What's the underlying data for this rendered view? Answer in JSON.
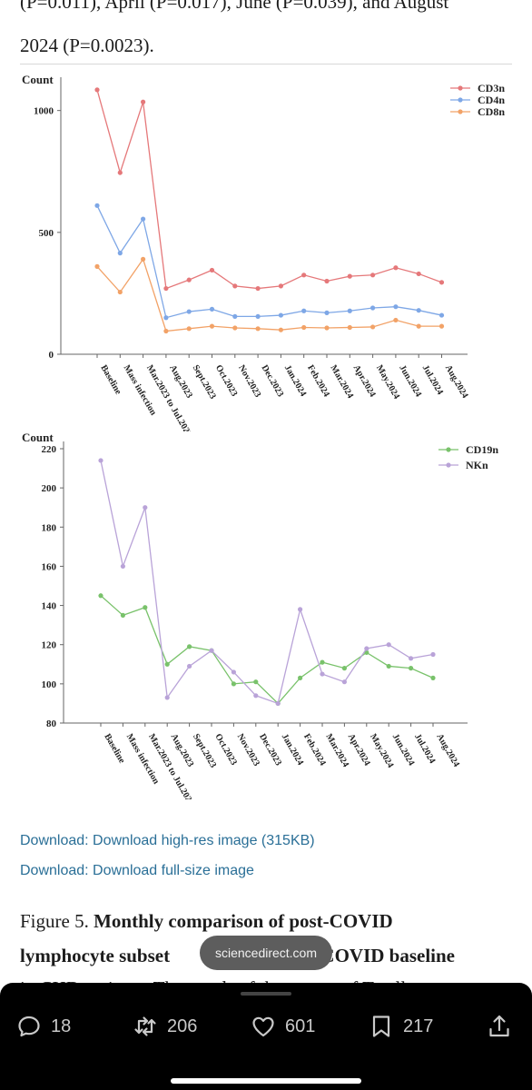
{
  "article": {
    "intro_line1": "(P=0.011), April (P=0.017), June (P=0.039), and August",
    "intro_line2": "2024 (P=0.0023).",
    "download_highres": "Download: Download high-res image (315KB)",
    "download_fullsize": "Download: Download full-size image",
    "caption_prefix": "Figure 5.",
    "caption_bold_line1": "Monthly comparison of post-COVID",
    "caption_line2_a": "lymphocyte subset",
    "caption_line2_b": "e-COVID baseline",
    "caption_line3": "in CHD patients. The trends of the counts of T cell"
  },
  "toast": {
    "text": "sciencedirect.com"
  },
  "actions": {
    "replies": "18",
    "reposts": "206",
    "likes": "601",
    "bookmarks": "217"
  },
  "colors": {
    "cd3n": "#e5787a",
    "cd4n": "#7ea7e6",
    "cd8n": "#f2a267",
    "cd19n": "#79c26b",
    "nkn": "#b9a3d8",
    "link": "#2a6f97"
  },
  "chart_data": [
    {
      "type": "line",
      "ylabel": "Count",
      "ylim": [
        0,
        1200
      ],
      "yticks": [
        0,
        500,
        1000
      ],
      "legend": "top-right",
      "categories": [
        "Baseline",
        "Mass infection",
        "Mar.2023 to Jul.2023",
        "Aug.2023",
        "Sept.2023",
        "Oct.2023",
        "Nov.2023",
        "Dec.2023",
        "Jan.2024",
        "Feb.2024",
        "Mar.2024",
        "Apr.2024",
        "May.2024",
        "Jun.2024",
        "Jul.2024",
        "Aug.2024"
      ],
      "series": [
        {
          "name": "CD3n",
          "color": "#e5787a",
          "values": [
            1085,
            745,
            1035,
            270,
            305,
            345,
            280,
            270,
            280,
            325,
            300,
            320,
            325,
            355,
            330,
            295
          ]
        },
        {
          "name": "CD4n",
          "color": "#7ea7e6",
          "values": [
            610,
            415,
            555,
            150,
            175,
            185,
            155,
            155,
            160,
            178,
            170,
            178,
            190,
            195,
            180,
            160
          ]
        },
        {
          "name": "CD8n",
          "color": "#f2a267",
          "values": [
            360,
            255,
            390,
            95,
            105,
            115,
            108,
            105,
            100,
            110,
            108,
            110,
            112,
            140,
            115,
            115
          ]
        }
      ]
    },
    {
      "type": "line",
      "ylabel": "Count",
      "ylim": [
        80,
        220
      ],
      "yticks": [
        80,
        100,
        120,
        140,
        160,
        180,
        200,
        220
      ],
      "legend": "top-right",
      "categories": [
        "Baseline",
        "Mass infection",
        "Mar.2023 to Jul.2023",
        "Aug.2023",
        "Sept.2023",
        "Oct.2023",
        "Nov.2023",
        "Dec.2023",
        "Jan.2024",
        "Feb.2024",
        "Mar.2024",
        "Apr.2024",
        "May.2024",
        "Jun.2024",
        "Jul.2024",
        "Aug.2024"
      ],
      "series": [
        {
          "name": "CD19n",
          "color": "#79c26b",
          "values": [
            145,
            135,
            139,
            110,
            119,
            117,
            100,
            101,
            90,
            103,
            111,
            108,
            116,
            109,
            108,
            103
          ]
        },
        {
          "name": "NKn",
          "color": "#b9a3d8",
          "values": [
            214,
            160,
            190,
            93,
            109,
            117,
            106,
            94,
            90,
            138,
            105,
            101,
            118,
            120,
            113,
            115
          ]
        }
      ]
    }
  ]
}
